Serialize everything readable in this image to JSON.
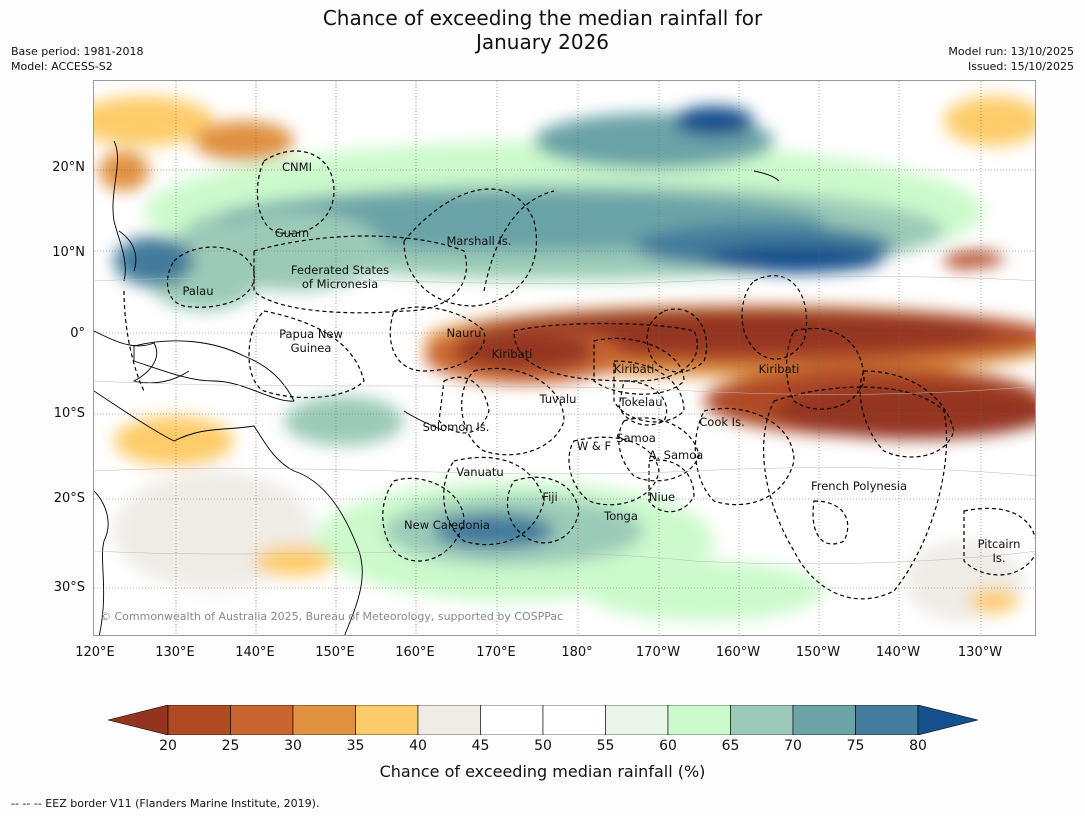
{
  "title_line1": "Chance of exceeding the median rainfall for",
  "title_line2": "January 2026",
  "meta": {
    "base_period": "Base period: 1981-2018",
    "model": "Model: ACCESS-S2",
    "model_run": "Model run: 13/10/2025",
    "issued": "Issued: 15/10/2025"
  },
  "lat_labels": [
    "20°N",
    "10°N",
    "0°",
    "10°S",
    "20°S",
    "30°S"
  ],
  "lon_labels": [
    "120°E",
    "130°E",
    "140°E",
    "150°E",
    "160°E",
    "170°E",
    "180°",
    "170°W",
    "160°W",
    "150°W",
    "140°W",
    "130°W"
  ],
  "regions": {
    "cnmi": "CNMI",
    "guam": "Guam",
    "marshall": "Marshall Is.",
    "fsm1": "Federated States",
    "fsm2": "of Micronesia",
    "palau": "Palau",
    "png1": "Papua New",
    "png2": "Guinea",
    "nauru": "Nauru",
    "kiribati1": "Kiribati",
    "kiribati2": "Kiribati",
    "kiribati3": "Kiribati",
    "tuvalu": "Tuvalu",
    "tokelau": "Tokelau",
    "cook": "Cook Is.",
    "solomon": "Solomon Is.",
    "wf": "W & F",
    "samoa": "Samoa",
    "asamoa": "A. Samoa",
    "vanuatu": "Vanuatu",
    "fiji": "Fiji",
    "niue": "Niue",
    "tonga": "Tonga",
    "newcal": "New Caledonia",
    "frpoly": "French Polynesia",
    "pitcairn1": "Pitcairn",
    "pitcairn2": "Is."
  },
  "copyright": "© Commonwealth of Australia 2025, Bureau of Meteorology, supported by COSPPac",
  "colorbar": {
    "ticks": [
      "20",
      "25",
      "30",
      "35",
      "40",
      "45",
      "50",
      "55",
      "60",
      "65",
      "70",
      "75",
      "80"
    ],
    "colors": [
      "#943420",
      "#b04a25",
      "#c96530",
      "#e09140",
      "#fdcc6a",
      "#efece6",
      "#ffffff",
      "#ffffff",
      "#e9f5e7",
      "#ccfacc",
      "#9bcbb8",
      "#6ba3a7",
      "#437c9c",
      "#13508c"
    ],
    "label": "Chance of exceeding median rainfall (%)"
  },
  "footer": "--  --  -- EEZ border V11 (Flanders Marine Institute, 2019)."
}
